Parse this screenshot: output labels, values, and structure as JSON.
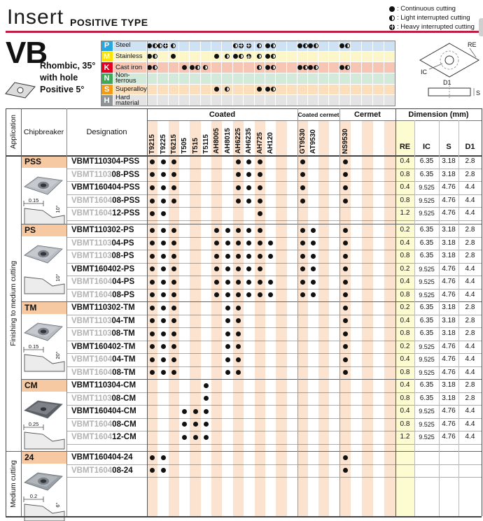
{
  "header": {
    "title": "Insert",
    "subtitle": "POSITIVE TYPE"
  },
  "legend": [
    {
      "sym": "c",
      "label": ": Continuous cutting"
    },
    {
      "sym": "l",
      "label": ": Light interrupted cutting"
    },
    {
      "sym": "h",
      "label": ": Heavy interrupted cutting"
    }
  ],
  "product": {
    "code": "VB",
    "desc": [
      "Rhombic, 35°",
      "with hole",
      "Positive 5°"
    ]
  },
  "insert_diagram": {
    "re": "RE",
    "ic": "IC",
    "d1": "D1",
    "s": "S"
  },
  "colors": {
    "accent": "#c01d45",
    "stripe": "#fbe3cf",
    "group_label_bg": "#f6c9a2",
    "re_col_bg": "#fdfbd0",
    "dot": "#111111"
  },
  "materials": {
    "rows": [
      {
        "letter": "P",
        "name": "Steel",
        "box": "#2aa7de",
        "tint": "#cfe2f4",
        "marks": {
          "T9215": "cl",
          "T9225": "lh",
          "T6215": "l",
          "AH6225": "lh",
          "AH6235": "h",
          "AH725": "l",
          "AH120": "cl",
          "GT9530": "cl",
          "AT9530": "cl",
          "NS9530": "cl"
        }
      },
      {
        "letter": "M",
        "name": "Stainless",
        "box": "#ffe200",
        "tint": "#fdf6c9",
        "marks": {
          "T9215": "cl",
          "T6215": "c",
          "AH8005": "c",
          "AH8015": "l",
          "AH6225": "cl",
          "AH6235": "h",
          "AH725": "l",
          "AH120": "cl"
        }
      },
      {
        "letter": "K",
        "name": "Cast iron",
        "box": "#e60020",
        "tint": "#f6c5b3",
        "marks": {
          "T9215": "cl",
          "T505": "c",
          "T515": "cl",
          "T5115": "l",
          "AH725": "l",
          "AH120": "cl",
          "GT9530": "cl",
          "AT9530": "cl",
          "NS9530": "cl"
        }
      },
      {
        "letter": "N",
        "name": "Non-\nferrous",
        "box": "#3fa757",
        "tint": "#d3e9da",
        "marks": {}
      },
      {
        "letter": "S",
        "name": "Superalloy",
        "box": "#f39b15",
        "tint": "#fbdfbd",
        "marks": {
          "AH8005": "c",
          "AH8015": "l",
          "AH725": "c",
          "AH120": "cl"
        }
      },
      {
        "letter": "H",
        "name": "Hard\nmaterial",
        "box": "#8f9496",
        "tint": "#e4e4e4",
        "marks": {}
      }
    ]
  },
  "grades": {
    "coated": {
      "label": "Coated",
      "names": [
        "T9215",
        "T9225",
        "T6215",
        "T505",
        "T515",
        "T5115",
        "AH8005",
        "AH8015",
        "AH6225",
        "AH6235",
        "AH725",
        "AH120"
      ]
    },
    "coated_cermet": {
      "label": "Coated cermet",
      "names": [
        "GT9530",
        "AT9530"
      ]
    },
    "cermet": {
      "label": "Cermet",
      "names": [
        "NS9530"
      ]
    }
  },
  "table": {
    "application_header": "Application",
    "chipbreaker_header": "Chipbreaker",
    "designation_header": "Designation",
    "dimension_header": "Dimension (mm)",
    "dim_cols": [
      "RE",
      "IC",
      "S",
      "D1"
    ],
    "applications": [
      {
        "label": "Finishing to medium cutting"
      },
      {
        "label": "Medium cutting"
      }
    ],
    "groups": [
      {
        "label": "PSS",
        "photo": "#b7bcc2",
        "diagram": {
          "dim": "0.15",
          "angle": "10°"
        },
        "rows": [
          {
            "prefix": "",
            "name": "VBMT110304-PSS",
            "dots": [
              "T9215",
              "T9225",
              "T6215",
              "AH6225",
              "AH6235",
              "AH725",
              "GT9530",
              "NS9530"
            ],
            "dims": [
              "0.4",
              "6.35",
              "3.18",
              "2.8"
            ]
          },
          {
            "prefix": "VBMT1103",
            "name": "08-PSS",
            "dots": [
              "T9215",
              "T9225",
              "T6215",
              "AH6225",
              "AH6235",
              "AH725",
              "GT9530",
              "NS9530"
            ],
            "dims": [
              "0.8",
              "6.35",
              "3.18",
              "2.8"
            ]
          },
          {
            "prefix": "",
            "name": "VBMT160404-PSS",
            "dots": [
              "T9215",
              "T9225",
              "T6215",
              "AH6225",
              "AH6235",
              "AH725",
              "GT9530",
              "NS9530"
            ],
            "dims": [
              "0.4",
              "9.525",
              "4.76",
              "4.4"
            ]
          },
          {
            "prefix": "VBMT1604",
            "name": "08-PSS",
            "dots": [
              "T9215",
              "T9225",
              "T6215",
              "AH6225",
              "AH6235",
              "AH725",
              "GT9530",
              "NS9530"
            ],
            "dims": [
              "0.8",
              "9.525",
              "4.76",
              "4.4"
            ]
          },
          {
            "prefix": "VBMT1604",
            "name": "12-PSS",
            "dots": [
              "T9215",
              "T9225",
              "AH725"
            ],
            "dims": [
              "1.2",
              "9.525",
              "4.76",
              "4.4"
            ]
          }
        ]
      },
      {
        "label": "PS",
        "photo": "#b7bcc2",
        "diagram": {
          "dim": "",
          "angle": "10°"
        },
        "rows": [
          {
            "prefix": "",
            "name": "VBMT110302-PS",
            "dots": [
              "T9215",
              "T9225",
              "T6215",
              "AH8005",
              "AH8015",
              "AH6225",
              "AH6235",
              "AH725",
              "GT9530",
              "AT9530",
              "NS9530"
            ],
            "dims": [
              "0.2",
              "6.35",
              "3.18",
              "2.8"
            ]
          },
          {
            "prefix": "VBMT1103",
            "name": "04-PS",
            "dots": [
              "T9215",
              "T9225",
              "T6215",
              "AH8005",
              "AH8015",
              "AH6225",
              "AH6235",
              "AH725",
              "AH120",
              "GT9530",
              "AT9530",
              "NS9530"
            ],
            "dims": [
              "0.4",
              "6.35",
              "3.18",
              "2.8"
            ]
          },
          {
            "prefix": "VBMT1103",
            "name": "08-PS",
            "dots": [
              "T9215",
              "T9225",
              "T6215",
              "AH8005",
              "AH8015",
              "AH6225",
              "AH6235",
              "AH725",
              "AH120",
              "GT9530",
              "AT9530",
              "NS9530"
            ],
            "dims": [
              "0.8",
              "6.35",
              "3.18",
              "2.8"
            ]
          },
          {
            "prefix": "",
            "name": "VBMT160402-PS",
            "dots": [
              "T9215",
              "T9225",
              "T6215",
              "AH8005",
              "AH8015",
              "AH6225",
              "AH6235",
              "AH725",
              "GT9530",
              "AT9530",
              "NS9530"
            ],
            "dims": [
              "0.2",
              "9.525",
              "4.76",
              "4.4"
            ]
          },
          {
            "prefix": "VBMT1604",
            "name": "04-PS",
            "dots": [
              "T9215",
              "T9225",
              "T6215",
              "AH8005",
              "AH8015",
              "AH6225",
              "AH6235",
              "AH725",
              "AH120",
              "GT9530",
              "AT9530",
              "NS9530"
            ],
            "dims": [
              "0.4",
              "9.525",
              "4.76",
              "4.4"
            ]
          },
          {
            "prefix": "VBMT1604",
            "name": "08-PS",
            "dots": [
              "T9215",
              "T9225",
              "T6215",
              "AH8005",
              "AH8015",
              "AH6225",
              "AH6235",
              "AH725",
              "AH120",
              "GT9530",
              "AT9530",
              "NS9530"
            ],
            "dims": [
              "0.8",
              "9.525",
              "4.76",
              "4.4"
            ]
          }
        ]
      },
      {
        "label": "TM",
        "photo": "#b7bcc2",
        "diagram": {
          "dim": "0.15",
          "angle": "20°"
        },
        "rows": [
          {
            "prefix": "",
            "name": "VBMT110302-TM",
            "dots": [
              "T9215",
              "T9225",
              "T6215",
              "AH8015",
              "AH6225",
              "NS9530"
            ],
            "dims": [
              "0.2",
              "6.35",
              "3.18",
              "2.8"
            ]
          },
          {
            "prefix": "VBMT1103",
            "name": "04-TM",
            "dots": [
              "T9215",
              "T9225",
              "T6215",
              "AH8015",
              "AH6225",
              "NS9530"
            ],
            "dims": [
              "0.4",
              "6.35",
              "3.18",
              "2.8"
            ]
          },
          {
            "prefix": "VBMT1103",
            "name": "08-TM",
            "dots": [
              "T9215",
              "T9225",
              "T6215",
              "AH8015",
              "AH6225",
              "NS9530"
            ],
            "dims": [
              "0.8",
              "6.35",
              "3.18",
              "2.8"
            ]
          },
          {
            "prefix": "",
            "name": "VBMT160402-TM",
            "dots": [
              "T9215",
              "T9225",
              "T6215",
              "AH8015",
              "AH6225",
              "NS9530"
            ],
            "dims": [
              "0.2",
              "9.525",
              "4.76",
              "4.4"
            ]
          },
          {
            "prefix": "VBMT1604",
            "name": "04-TM",
            "dots": [
              "T9215",
              "T9225",
              "T6215",
              "AH8015",
              "AH6225",
              "NS9530"
            ],
            "dims": [
              "0.4",
              "9.525",
              "4.76",
              "4.4"
            ]
          },
          {
            "prefix": "VBMT1604",
            "name": "08-TM",
            "dots": [
              "T9215",
              "T9225",
              "T6215",
              "AH8015",
              "AH6225",
              "NS9530"
            ],
            "dims": [
              "0.8",
              "9.525",
              "4.76",
              "4.4"
            ]
          }
        ]
      },
      {
        "label": "CM",
        "photo": "#5a5f66",
        "diagram": {
          "dim": "0.25",
          "angle": ""
        },
        "rows": [
          {
            "prefix": "",
            "name": "VBMT110304-CM",
            "dots": [
              "T5115"
            ],
            "dims": [
              "0.4",
              "6.35",
              "3.18",
              "2.8"
            ]
          },
          {
            "prefix": "VBMT1103",
            "name": "08-CM",
            "dots": [
              "T5115"
            ],
            "dims": [
              "0.8",
              "6.35",
              "3.18",
              "2.8"
            ]
          },
          {
            "prefix": "",
            "name": "VBMT160404-CM",
            "dots": [
              "T505",
              "T515",
              "T5115"
            ],
            "dims": [
              "0.4",
              "9.525",
              "4.76",
              "4.4"
            ]
          },
          {
            "prefix": "VBMT1604",
            "name": "08-CM",
            "dots": [
              "T505",
              "T515",
              "T5115"
            ],
            "dims": [
              "0.8",
              "9.525",
              "4.76",
              "4.4"
            ]
          },
          {
            "prefix": "VBMT1604",
            "name": "12-CM",
            "dots": [
              "T505",
              "T515",
              "T5115"
            ],
            "dims": [
              "1.2",
              "9.525",
              "4.76",
              "4.4"
            ]
          }
        ]
      },
      {
        "label": "24",
        "photo": "#9aa0a7",
        "diagram": {
          "dim": "0.2",
          "angle": "6°"
        },
        "rows": [
          {
            "prefix": "",
            "name": "VBMT160404-24",
            "dots": [
              "T9215",
              "T9225",
              "NS9530"
            ],
            "dims": [
              "",
              "",
              "",
              ""
            ]
          },
          {
            "prefix": "VBMT1604",
            "name": "08-24",
            "dots": [
              "T9215",
              "T9225",
              "NS9530"
            ],
            "dims": [
              "",
              "",
              "",
              ""
            ]
          }
        ]
      }
    ]
  }
}
